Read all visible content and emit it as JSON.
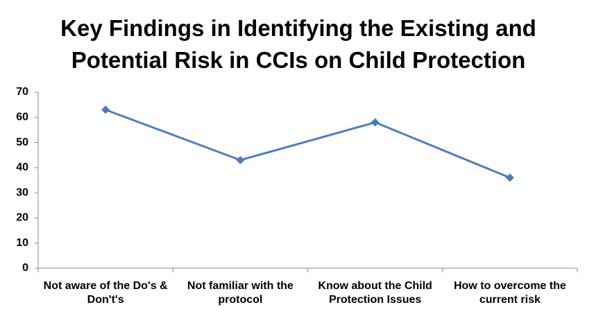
{
  "chart_data": {
    "type": "line",
    "title": "Key Findings in Identifying the Existing and Potential Risk in CCIs on Child Protection",
    "categories": [
      "Not aware of the Do's & Don't's",
      "Not familiar with the protocol",
      "Know about the Child Protection Issues",
      "How to overcome the current risk"
    ],
    "values": [
      63,
      43,
      58,
      36
    ],
    "color": "#4a7ebb",
    "marker": "diamond",
    "ylim": [
      0,
      70
    ],
    "yticks": [
      0,
      10,
      20,
      30,
      40,
      50,
      60,
      70
    ],
    "grid": false
  }
}
